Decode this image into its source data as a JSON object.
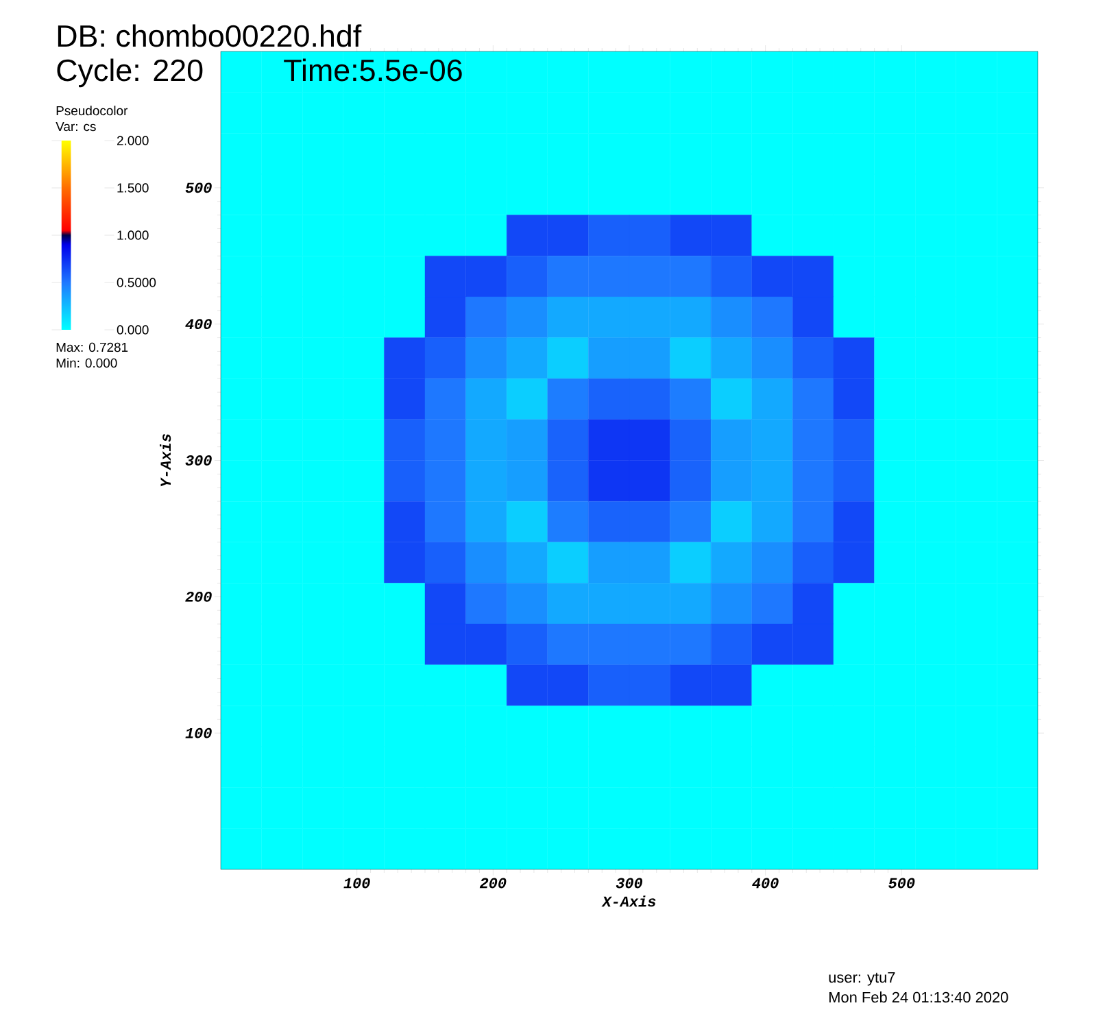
{
  "chart_data": {
    "type": "heatmap",
    "title": "DB: chombo00220.hdf",
    "subtitle": "Cycle: 220",
    "xlabel": "X-Axis",
    "ylabel": "Y-Axis",
    "clabel": "Var: cs",
    "annotations": [
      "Time:5.5e-06",
      "Pseudocolor",
      "Max:  0.7281",
      "Min:  0.000",
      "user: ytu7",
      "Mon Feb 24 01:13:40 2020"
    ],
    "xlim": [
      0,
      600
    ],
    "ylim": [
      0,
      600
    ],
    "xticks": [
      100,
      200,
      300,
      400,
      500
    ],
    "yticks": [
      100,
      200,
      300,
      400,
      500
    ],
    "clim": [
      0,
      2
    ],
    "cticks": [
      {
        "value": 0,
        "label": "0.000"
      },
      {
        "value": 0.5,
        "label": "0.5000"
      },
      {
        "value": 1,
        "label": "1.000"
      },
      {
        "value": 1.5,
        "label": "1.500"
      },
      {
        "value": 2,
        "label": "2.000"
      }
    ],
    "x": [
      15,
      45,
      75,
      105,
      135,
      165,
      195,
      225,
      255,
      285,
      315,
      345,
      375,
      405,
      435,
      465,
      495,
      525,
      555,
      585
    ],
    "y": [
      585,
      555,
      525,
      495,
      465,
      435,
      405,
      375,
      345,
      315,
      285,
      255,
      225,
      195,
      165,
      135,
      105,
      75,
      45,
      15
    ],
    "cells": [
      [
        0,
        0,
        0,
        0,
        0,
        0,
        0,
        0,
        0,
        0,
        0,
        0,
        0,
        0,
        0,
        0,
        0,
        0,
        0,
        0
      ],
      [
        0,
        0,
        0,
        0,
        0,
        0,
        0,
        0,
        0,
        0,
        0,
        0,
        0,
        0,
        0,
        0,
        0,
        0,
        0,
        0
      ],
      [
        0,
        0,
        0,
        0,
        0,
        0,
        0,
        0,
        0,
        0,
        0,
        0,
        0,
        0,
        0,
        0,
        0,
        0,
        0,
        0
      ],
      [
        0,
        0,
        0,
        0,
        0,
        0,
        0,
        0,
        0,
        0,
        0,
        0,
        0,
        0,
        0,
        0,
        0,
        0,
        0,
        0
      ],
      [
        0,
        0,
        0,
        0,
        0,
        0,
        0,
        0.66,
        0.66,
        0.58,
        0.58,
        0.66,
        0.66,
        0,
        0,
        0,
        0,
        0,
        0,
        0
      ],
      [
        0,
        0,
        0,
        0,
        0,
        0.66,
        0.66,
        0.58,
        0.5,
        0.5,
        0.5,
        0.5,
        0.58,
        0.66,
        0.66,
        0,
        0,
        0,
        0,
        0
      ],
      [
        0,
        0,
        0,
        0,
        0,
        0.66,
        0.5,
        0.42,
        0.32,
        0.32,
        0.32,
        0.32,
        0.42,
        0.5,
        0.66,
        0,
        0,
        0,
        0,
        0
      ],
      [
        0,
        0,
        0,
        0,
        0.66,
        0.58,
        0.42,
        0.32,
        0.18,
        0.36,
        0.36,
        0.18,
        0.32,
        0.42,
        0.58,
        0.66,
        0,
        0,
        0,
        0
      ],
      [
        0,
        0,
        0,
        0,
        0.66,
        0.5,
        0.32,
        0.18,
        0.48,
        0.57,
        0.57,
        0.48,
        0.18,
        0.32,
        0.5,
        0.66,
        0,
        0,
        0,
        0
      ],
      [
        0,
        0,
        0,
        0,
        0.58,
        0.5,
        0.32,
        0.36,
        0.57,
        0.72,
        0.72,
        0.57,
        0.36,
        0.32,
        0.5,
        0.58,
        0,
        0,
        0,
        0
      ],
      [
        0,
        0,
        0,
        0,
        0.58,
        0.5,
        0.32,
        0.36,
        0.57,
        0.72,
        0.72,
        0.57,
        0.36,
        0.32,
        0.5,
        0.58,
        0,
        0,
        0,
        0
      ],
      [
        0,
        0,
        0,
        0,
        0.66,
        0.5,
        0.32,
        0.18,
        0.48,
        0.57,
        0.57,
        0.48,
        0.18,
        0.32,
        0.5,
        0.66,
        0,
        0,
        0,
        0
      ],
      [
        0,
        0,
        0,
        0,
        0.66,
        0.58,
        0.42,
        0.32,
        0.18,
        0.36,
        0.36,
        0.18,
        0.32,
        0.42,
        0.58,
        0.66,
        0,
        0,
        0,
        0
      ],
      [
        0,
        0,
        0,
        0,
        0,
        0.66,
        0.5,
        0.42,
        0.32,
        0.32,
        0.32,
        0.32,
        0.42,
        0.5,
        0.66,
        0,
        0,
        0,
        0,
        0
      ],
      [
        0,
        0,
        0,
        0,
        0,
        0.66,
        0.66,
        0.58,
        0.5,
        0.5,
        0.5,
        0.5,
        0.58,
        0.66,
        0.66,
        0,
        0,
        0,
        0,
        0
      ],
      [
        0,
        0,
        0,
        0,
        0,
        0,
        0,
        0.66,
        0.66,
        0.58,
        0.58,
        0.66,
        0.66,
        0,
        0,
        0,
        0,
        0,
        0,
        0
      ],
      [
        0,
        0,
        0,
        0,
        0,
        0,
        0,
        0,
        0,
        0,
        0,
        0,
        0,
        0,
        0,
        0,
        0,
        0,
        0,
        0
      ],
      [
        0,
        0,
        0,
        0,
        0,
        0,
        0,
        0,
        0,
        0,
        0,
        0,
        0,
        0,
        0,
        0,
        0,
        0,
        0,
        0
      ],
      [
        0,
        0,
        0,
        0,
        0,
        0,
        0,
        0,
        0,
        0,
        0,
        0,
        0,
        0,
        0,
        0,
        0,
        0,
        0,
        0
      ],
      [
        0,
        0,
        0,
        0,
        0,
        0,
        0,
        0,
        0,
        0,
        0,
        0,
        0,
        0,
        0,
        0,
        0,
        0,
        0,
        0
      ]
    ]
  }
}
